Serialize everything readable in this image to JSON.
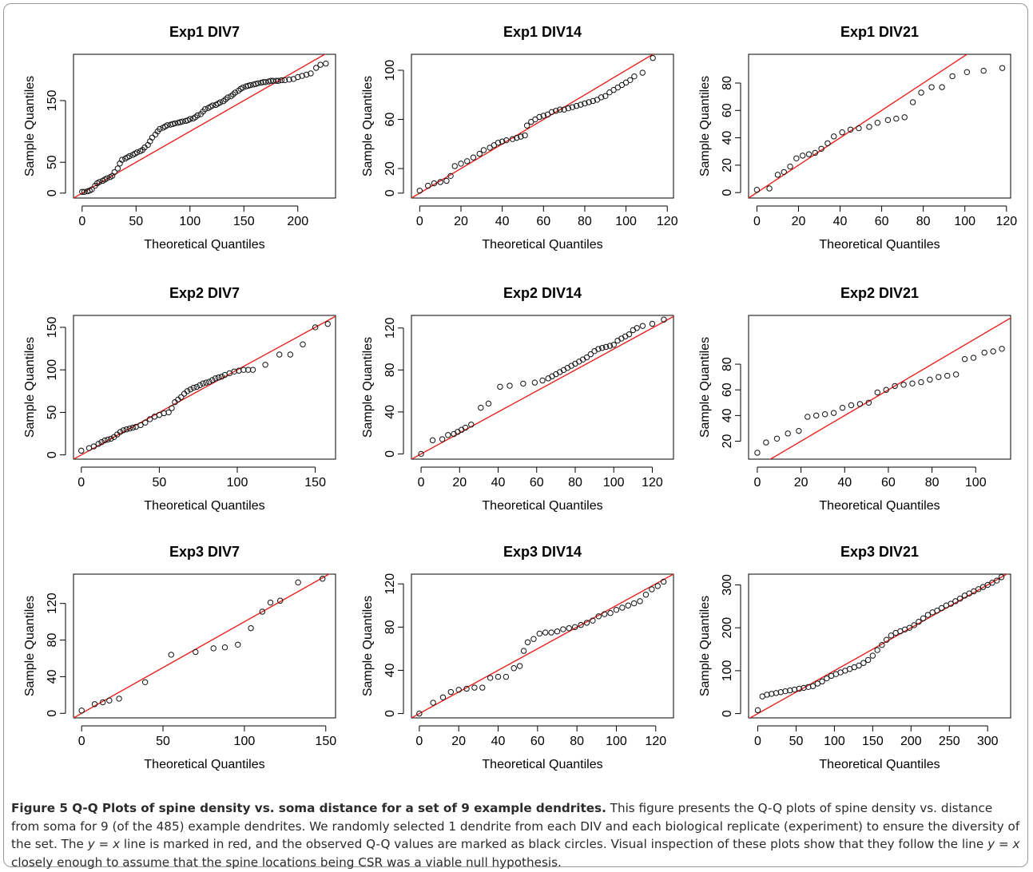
{
  "figure": {
    "caption_label": "Figure 5",
    "caption_title": "Q-Q Plots of spine density vs. soma distance for a set of 9 example dendrites.",
    "caption_text_1": "This figure presents the Q-Q plots of spine density vs. distance from soma for 9 (of the 485) example dendrites. We randomly selected 1 dendrite from each DIV and each biological replicate (experiment) to ensure the diversity of the set. The ",
    "caption_math_1": "y = x",
    "caption_text_2": " line is marked in red, and the observed Q-Q values are marked as black circles. Visual inspection of these plots show that they follow the line ",
    "caption_math_2": "y = x",
    "caption_text_3": " closely enough to assume that the spine locations being CSR was a viable null hypothesis."
  },
  "colors": {
    "reference_line": "#e8231f",
    "points": "#111111",
    "axes": "#000000"
  },
  "chart_data": [
    {
      "type": "scatter",
      "title": "Exp1 DIV7",
      "xlabel": "Theoretical Quantiles",
      "ylabel": "Sample Quantiles",
      "xlim": [
        -8,
        235
      ],
      "ylim": [
        -8,
        225
      ],
      "xticks": [
        0,
        50,
        100,
        150,
        200
      ],
      "yticks": [
        0,
        50,
        150
      ],
      "reference_line": "y = x",
      "x": [
        0,
        2,
        5,
        7,
        9,
        12,
        14,
        16,
        19,
        21,
        23,
        26,
        28,
        30,
        33,
        35,
        37,
        40,
        42,
        44,
        47,
        49,
        51,
        54,
        56,
        58,
        61,
        63,
        65,
        68,
        70,
        72,
        75,
        77,
        79,
        82,
        84,
        86,
        89,
        91,
        93,
        96,
        98,
        100,
        103,
        105,
        107,
        110,
        112,
        114,
        117,
        119,
        121,
        124,
        126,
        128,
        131,
        133,
        135,
        138,
        140,
        142,
        145,
        147,
        149,
        152,
        154,
        156,
        159,
        161,
        163,
        166,
        168,
        170,
        173,
        175,
        177,
        180,
        182,
        185,
        188,
        192,
        196,
        200,
        204,
        208,
        212,
        217,
        221,
        226
      ],
      "y": [
        2,
        2,
        3,
        4,
        6,
        12,
        16,
        18,
        20,
        22,
        24,
        26,
        28,
        34,
        40,
        48,
        54,
        56,
        58,
        60,
        62,
        64,
        66,
        68,
        70,
        74,
        78,
        84,
        90,
        95,
        100,
        104,
        106,
        108,
        110,
        111,
        112,
        113,
        114,
        115,
        116,
        117,
        118,
        120,
        121,
        123,
        126,
        128,
        132,
        136,
        138,
        140,
        142,
        143,
        145,
        147,
        149,
        152,
        155,
        157,
        160,
        163,
        166,
        169,
        171,
        173,
        174,
        175,
        176,
        177,
        178,
        179,
        180,
        180,
        181,
        182,
        182,
        182,
        182,
        183,
        183,
        184,
        185,
        188,
        190,
        192,
        194,
        203,
        208,
        210
      ]
    },
    {
      "type": "scatter",
      "title": "Exp1 DIV14",
      "xlabel": "Theoretical Quantiles",
      "ylabel": "Sample Quantiles",
      "xlim": [
        -4,
        123
      ],
      "ylim": [
        -4,
        113
      ],
      "xticks": [
        0,
        20,
        40,
        60,
        80,
        100,
        120
      ],
      "yticks": [
        0,
        20,
        60,
        100
      ],
      "reference_line": "y = x",
      "x": [
        0,
        4,
        7,
        10,
        13,
        15,
        17,
        20,
        23,
        26,
        29,
        31,
        34,
        36,
        38,
        40,
        42,
        45,
        47,
        49,
        51,
        52,
        54,
        56,
        58,
        60,
        62,
        64,
        66,
        68,
        70,
        72,
        74,
        76,
        78,
        80,
        82,
        84,
        86,
        88,
        90,
        92,
        94,
        96,
        98,
        100,
        102,
        104,
        108,
        113
      ],
      "y": [
        2,
        6,
        8,
        9,
        10,
        14,
        22,
        24,
        26,
        29,
        32,
        35,
        37,
        39,
        41,
        42,
        43,
        44,
        45,
        46,
        47,
        55,
        58,
        60,
        62,
        63,
        64,
        66,
        67,
        68,
        68,
        69,
        70,
        71,
        72,
        73,
        74,
        75,
        76,
        78,
        79,
        82,
        84,
        86,
        88,
        90,
        92,
        95,
        98,
        110
      ]
    },
    {
      "type": "scatter",
      "title": "Exp1 DIV21",
      "xlabel": "Theoretical Quantiles",
      "ylabel": "Sample Quantiles",
      "xlim": [
        -4,
        122
      ],
      "ylim": [
        -4,
        101
      ],
      "xticks": [
        0,
        20,
        40,
        60,
        80,
        100,
        120
      ],
      "yticks": [
        0,
        20,
        40,
        60,
        80
      ],
      "reference_line": "y = x",
      "x": [
        0,
        6,
        10,
        13,
        16,
        19,
        22,
        25,
        28,
        31,
        34,
        37,
        41,
        45,
        49,
        54,
        58,
        63,
        67,
        71,
        75,
        79,
        84,
        89,
        94,
        101,
        109,
        118
      ],
      "y": [
        2,
        3,
        13,
        15,
        19,
        25,
        27,
        28,
        29,
        32,
        36,
        41,
        44,
        46,
        47,
        48,
        51,
        53,
        54,
        55,
        66,
        73,
        77,
        77,
        85,
        88,
        89,
        91
      ]
    },
    {
      "type": "scatter",
      "title": "Exp2 DIV7",
      "xlabel": "Theoretical Quantiles",
      "ylabel": "Sample Quantiles",
      "xlim": [
        -5,
        163
      ],
      "ylim": [
        -5,
        164
      ],
      "xticks": [
        0,
        50,
        100,
        150
      ],
      "yticks": [
        0,
        50,
        100,
        150
      ],
      "reference_line": "y = x",
      "x": [
        0,
        5,
        8,
        11,
        13,
        15,
        17,
        19,
        21,
        23,
        25,
        27,
        29,
        31,
        33,
        35,
        38,
        41,
        44,
        47,
        50,
        53,
        56,
        58,
        60,
        62,
        64,
        66,
        68,
        70,
        72,
        74,
        76,
        78,
        80,
        82,
        84,
        86,
        88,
        90,
        92,
        95,
        98,
        101,
        104,
        107,
        110,
        118,
        127,
        134,
        142,
        150,
        158
      ],
      "y": [
        5,
        8,
        10,
        13,
        15,
        17,
        18,
        19,
        21,
        24,
        27,
        29,
        30,
        31,
        32,
        33,
        35,
        38,
        42,
        45,
        47,
        49,
        50,
        55,
        62,
        65,
        68,
        72,
        75,
        77,
        79,
        80,
        82,
        84,
        85,
        86,
        88,
        90,
        91,
        92,
        94,
        96,
        98,
        99,
        100,
        100,
        100,
        106,
        118,
        118,
        130,
        150,
        154
      ]
    },
    {
      "type": "scatter",
      "title": "Exp2 DIV14",
      "xlabel": "Theoretical Quantiles",
      "ylabel": "Sample Quantiles",
      "xlim": [
        -5,
        131
      ],
      "ylim": [
        -5,
        132
      ],
      "xticks": [
        0,
        20,
        40,
        60,
        80,
        100,
        120
      ],
      "yticks": [
        0,
        40,
        80,
        120
      ],
      "reference_line": "y = x",
      "x": [
        0,
        6,
        11,
        14,
        17,
        19,
        21,
        23,
        26,
        31,
        35,
        41,
        46,
        53,
        59,
        63,
        66,
        68,
        70,
        72,
        74,
        76,
        78,
        80,
        82,
        84,
        86,
        88,
        90,
        92,
        94,
        96,
        98,
        100,
        102,
        104,
        106,
        108,
        110,
        112,
        115,
        120,
        126
      ],
      "y": [
        0,
        13,
        14,
        18,
        19,
        21,
        23,
        25,
        28,
        44,
        48,
        64,
        65,
        67,
        68,
        70,
        72,
        74,
        76,
        78,
        80,
        82,
        84,
        86,
        88,
        90,
        92,
        95,
        98,
        100,
        101,
        102,
        103,
        104,
        108,
        110,
        112,
        114,
        118,
        120,
        122,
        124,
        128
      ]
    },
    {
      "type": "scatter",
      "title": "Exp2 DIV21",
      "xlabel": "Theoretical Quantiles",
      "ylabel": "Sample Quantiles",
      "xlim": [
        -4,
        116
      ],
      "ylim": [
        6,
        118
      ],
      "xticks": [
        0,
        20,
        40,
        60,
        80,
        100
      ],
      "yticks": [
        20,
        40,
        60,
        80
      ],
      "reference_line": "y = x",
      "x": [
        0,
        4,
        9,
        14,
        19,
        23,
        27,
        31,
        35,
        39,
        43,
        47,
        51,
        55,
        59,
        63,
        67,
        71,
        75,
        79,
        83,
        87,
        91,
        95,
        99,
        104,
        108,
        112
      ],
      "y": [
        11,
        19,
        22,
        26,
        28,
        39,
        40,
        41,
        42,
        46,
        48,
        49,
        50,
        58,
        60,
        63,
        64,
        65,
        66,
        68,
        70,
        71,
        72,
        84,
        85,
        89,
        90,
        92
      ]
    },
    {
      "type": "scatter",
      "title": "Exp3 DIV7",
      "xlabel": "Theoretical Quantiles",
      "ylabel": "Sample Quantiles",
      "xlim": [
        -5,
        156
      ],
      "ylim": [
        -5,
        152
      ],
      "xticks": [
        0,
        50,
        100,
        150
      ],
      "yticks": [
        0,
        40,
        80,
        120
      ],
      "reference_line": "y = x",
      "x": [
        0,
        8,
        13,
        17,
        23,
        39,
        55,
        70,
        81,
        88,
        96,
        104,
        111,
        116,
        122,
        133,
        148
      ],
      "y": [
        3,
        10,
        12,
        14,
        16,
        34,
        64,
        67,
        71,
        72,
        75,
        93,
        111,
        121,
        123,
        143,
        147
      ]
    },
    {
      "type": "scatter",
      "title": "Exp3 DIV14",
      "xlabel": "Theoretical Quantiles",
      "ylabel": "Sample Quantiles",
      "xlim": [
        -4,
        129
      ],
      "ylim": [
        -4,
        129
      ],
      "xticks": [
        0,
        20,
        40,
        60,
        80,
        100,
        120
      ],
      "yticks": [
        0,
        40,
        80,
        120
      ],
      "reference_line": "y = x",
      "x": [
        0,
        7,
        12,
        16,
        20,
        24,
        28,
        32,
        36,
        40,
        44,
        48,
        51,
        53,
        55,
        58,
        61,
        64,
        67,
        70,
        73,
        76,
        79,
        82,
        85,
        88,
        91,
        94,
        97,
        100,
        103,
        106,
        109,
        112,
        115,
        118,
        121,
        124
      ],
      "y": [
        0,
        10,
        15,
        20,
        22,
        23,
        24,
        24,
        33,
        34,
        34,
        42,
        44,
        58,
        66,
        69,
        74,
        75,
        75,
        76,
        78,
        79,
        80,
        82,
        84,
        86,
        90,
        92,
        93,
        96,
        98,
        100,
        102,
        104,
        110,
        115,
        118,
        122
      ]
    },
    {
      "type": "scatter",
      "title": "Exp3 DIV21",
      "xlabel": "Theoretical Quantiles",
      "ylabel": "Sample Quantiles",
      "xlim": [
        -12,
        330
      ],
      "ylim": [
        -10,
        325
      ],
      "xticks": [
        0,
        50,
        100,
        150,
        200,
        250,
        300
      ],
      "yticks": [
        0,
        100,
        200,
        300
      ],
      "reference_line": "y = x",
      "x": [
        0,
        6,
        12,
        18,
        24,
        30,
        36,
        42,
        48,
        54,
        60,
        66,
        72,
        78,
        84,
        90,
        96,
        102,
        108,
        114,
        120,
        126,
        132,
        138,
        144,
        150,
        156,
        162,
        168,
        174,
        180,
        186,
        192,
        198,
        204,
        210,
        216,
        222,
        228,
        234,
        240,
        246,
        252,
        258,
        264,
        270,
        276,
        282,
        288,
        294,
        300,
        306,
        312,
        318
      ],
      "y": [
        8,
        40,
        44,
        46,
        48,
        50,
        52,
        54,
        56,
        58,
        60,
        62,
        64,
        70,
        75,
        82,
        88,
        92,
        96,
        100,
        104,
        108,
        112,
        118,
        125,
        135,
        148,
        160,
        172,
        182,
        188,
        192,
        196,
        200,
        206,
        214,
        222,
        230,
        236,
        240,
        246,
        252,
        256,
        262,
        268,
        275,
        280,
        285,
        290,
        295,
        300,
        305,
        310,
        318
      ]
    }
  ]
}
